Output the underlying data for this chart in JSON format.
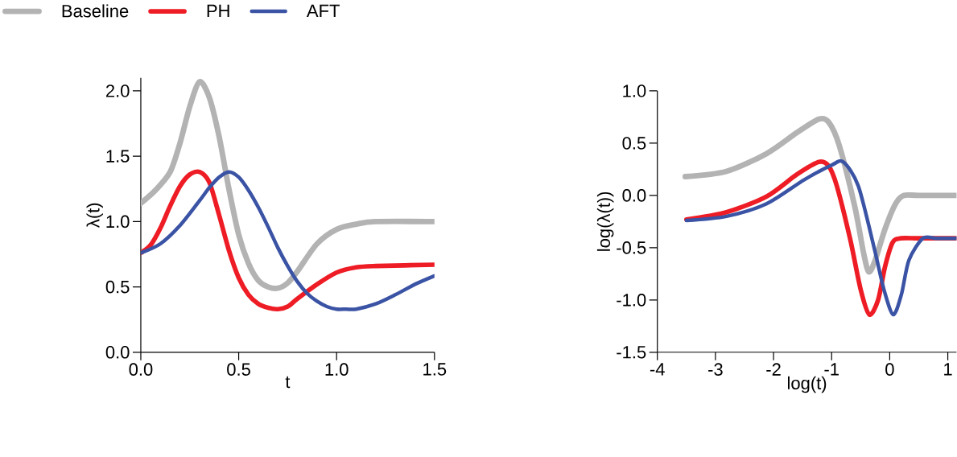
{
  "chart_data": [
    {
      "type": "line",
      "xlabel": "t",
      "ylabel": "λ(t)",
      "legend": "top left",
      "xlim": [
        0,
        1.5
      ],
      "ylim": [
        0,
        2.1
      ],
      "xticks": [
        {
          "value": 0,
          "label": "0.0"
        },
        {
          "value": 0.5,
          "label": "0.5"
        },
        {
          "value": 1,
          "label": "1.0"
        },
        {
          "value": 1.5,
          "label": "1.5"
        }
      ],
      "yticks": [
        {
          "value": 0,
          "label": "0.0"
        },
        {
          "value": 0.5,
          "label": "0.5"
        },
        {
          "value": 1,
          "label": "1.0"
        },
        {
          "value": 1.5,
          "label": "1.5"
        },
        {
          "value": 2,
          "label": "2.0"
        }
      ],
      "series": [
        {
          "name": "Baseline",
          "color": "#b3b3b3",
          "x": [
            0,
            0.075,
            0.15,
            0.2,
            0.25,
            0.3,
            0.35,
            0.4,
            0.45,
            0.5,
            0.55,
            0.6,
            0.65,
            0.7,
            0.75,
            0.8,
            0.9,
            1.0,
            1.1,
            1.2,
            1.5
          ],
          "values": [
            1.14,
            1.24,
            1.38,
            1.6,
            1.88,
            2.07,
            1.95,
            1.65,
            1.25,
            0.9,
            0.68,
            0.55,
            0.5,
            0.49,
            0.53,
            0.62,
            0.83,
            0.94,
            0.98,
            1.0,
            1.0
          ]
        },
        {
          "name": "PH",
          "color": "#ee1c25",
          "x": [
            0,
            0.05,
            0.1,
            0.15,
            0.2,
            0.25,
            0.3,
            0.35,
            0.4,
            0.45,
            0.5,
            0.55,
            0.6,
            0.65,
            0.7,
            0.75,
            0.8,
            0.9,
            1.0,
            1.1,
            1.2,
            1.5
          ],
          "values": [
            0.76,
            0.82,
            0.95,
            1.12,
            1.27,
            1.36,
            1.38,
            1.3,
            1.05,
            0.78,
            0.57,
            0.44,
            0.37,
            0.34,
            0.33,
            0.35,
            0.41,
            0.52,
            0.61,
            0.65,
            0.66,
            0.67
          ]
        },
        {
          "name": "AFT",
          "color": "#3a53a4",
          "x": [
            0,
            0.1,
            0.2,
            0.3,
            0.35,
            0.4,
            0.45,
            0.5,
            0.55,
            0.6,
            0.65,
            0.7,
            0.75,
            0.8,
            0.85,
            0.9,
            0.95,
            1.0,
            1.05,
            1.1,
            1.2,
            1.3,
            1.4,
            1.5
          ],
          "values": [
            0.76,
            0.83,
            0.97,
            1.16,
            1.26,
            1.34,
            1.38,
            1.34,
            1.24,
            1.11,
            0.96,
            0.8,
            0.66,
            0.54,
            0.45,
            0.39,
            0.35,
            0.33,
            0.33,
            0.33,
            0.37,
            0.44,
            0.52,
            0.585
          ]
        }
      ]
    },
    {
      "type": "line",
      "xlabel": "log(t)",
      "ylabel": "log(λ(t))",
      "xlim": [
        -4,
        1.15
      ],
      "ylim": [
        -1.5,
        1.0
      ],
      "xticks": [
        {
          "value": -4,
          "label": "-4"
        },
        {
          "value": -3,
          "label": "-3"
        },
        {
          "value": -2,
          "label": "-2"
        },
        {
          "value": -1,
          "label": "-1"
        },
        {
          "value": 0,
          "label": "0"
        },
        {
          "value": 1,
          "label": "1"
        }
      ],
      "yticks": [
        {
          "value": -1.5,
          "label": "-1.5"
        },
        {
          "value": -1,
          "label": "-1.0"
        },
        {
          "value": -0.5,
          "label": "-0.5"
        },
        {
          "value": 0,
          "label": "0.0"
        },
        {
          "value": 0.5,
          "label": "0.5"
        },
        {
          "value": 1,
          "label": "1.0"
        }
      ],
      "series": [
        {
          "color": "#b3b3b3",
          "x": [
            -3.52,
            -2.81,
            -2.12,
            -1.6,
            -1.22,
            -1.05,
            -0.87,
            -0.6,
            -0.45,
            -0.36,
            -0.25,
            -0.08,
            0.1,
            0.24,
            0.5,
            1.15
          ],
          "values": [
            0.18,
            0.23,
            0.4,
            0.6,
            0.73,
            0.7,
            0.48,
            -0.11,
            -0.55,
            -0.73,
            -0.62,
            -0.32,
            -0.08,
            0.0,
            0.0,
            0.0
          ]
        },
        {
          "color": "#ee1c25",
          "x": [
            -3.5,
            -2.81,
            -2.12,
            -1.6,
            -1.22,
            -1.05,
            -0.91,
            -0.68,
            -0.5,
            -0.35,
            -0.2,
            -0.08,
            0.05,
            0.19,
            0.5,
            1.15
          ],
          "values": [
            -0.23,
            -0.16,
            -0.01,
            0.2,
            0.32,
            0.28,
            0.09,
            -0.42,
            -0.9,
            -1.14,
            -1.0,
            -0.68,
            -0.45,
            -0.41,
            -0.41,
            -0.41
          ]
        },
        {
          "color": "#3a53a4",
          "x": [
            -3.5,
            -2.81,
            -2.12,
            -1.47,
            -1.0,
            -0.8,
            -0.54,
            -0.26,
            -0.1,
            0.06,
            0.2,
            0.33,
            0.57,
            0.8,
            1.15
          ],
          "values": [
            -0.24,
            -0.2,
            -0.08,
            0.15,
            0.29,
            0.32,
            0.09,
            -0.52,
            -0.9,
            -1.14,
            -0.95,
            -0.62,
            -0.41,
            -0.41,
            -0.41
          ]
        }
      ]
    }
  ]
}
